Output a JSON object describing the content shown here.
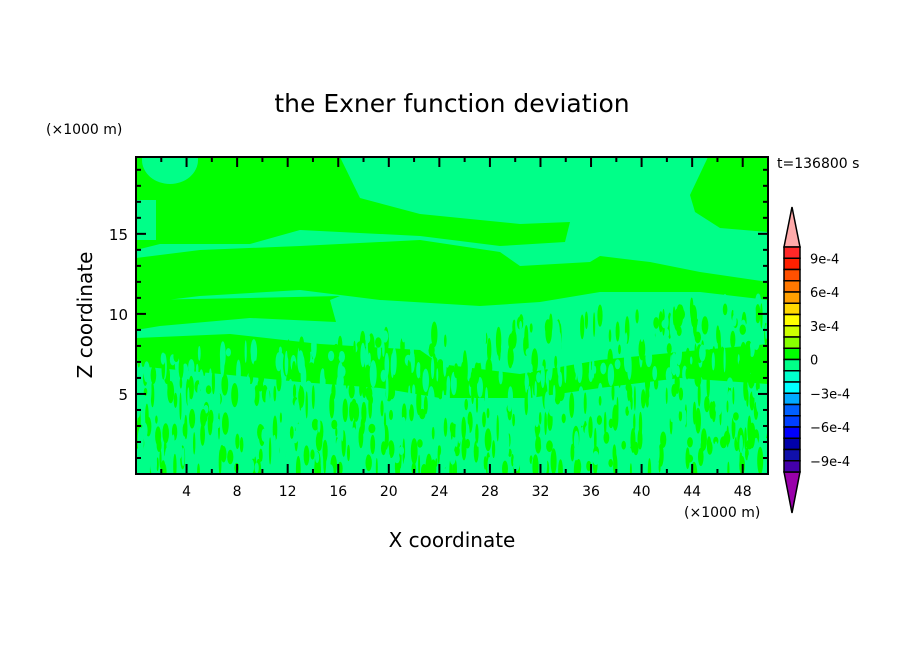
{
  "chart_data": {
    "type": "heatmap",
    "subtype": "filled-contour",
    "title": "the Exner function deviation",
    "xlabel": "X coordinate",
    "ylabel": "Z coordinate",
    "x_unit": "(×1000 m)",
    "y_unit": "(×1000 m)",
    "time_label": "t=136800 s",
    "xlim": [
      0,
      50
    ],
    "ylim": [
      0,
      19.8
    ],
    "x_ticks": [
      4,
      8,
      12,
      16,
      20,
      24,
      28,
      32,
      36,
      40,
      44,
      48
    ],
    "y_ticks": [
      5,
      10,
      15
    ],
    "grid": false,
    "field_description_levels_present": [
      "0 to 1e-4",
      "-1e-4 to 0"
    ],
    "field_colors": {
      "positive_small": "#00ff00",
      "negative_small": "#00ff88"
    },
    "colorbar": {
      "position": "right",
      "min": -0.001,
      "max": 0.001,
      "step": 0.0001,
      "extend": "both",
      "labels": [
        {
          "value": 0.0009,
          "text": "9e-4"
        },
        {
          "value": 0.0006,
          "text": "6e-4"
        },
        {
          "value": 0.0003,
          "text": "3e-4"
        },
        {
          "value": 0,
          "text": "0"
        },
        {
          "value": -0.0003,
          "text": "−3e-4"
        },
        {
          "value": -0.0006,
          "text": "−6e-4"
        },
        {
          "value": -0.0009,
          "text": "−9e-4"
        }
      ],
      "over_color": "#ffaaaa",
      "under_color": "#9900aa",
      "colors_top_to_bottom": [
        "#ff2828",
        "#ff2000",
        "#ff5000",
        "#ff7800",
        "#ffa000",
        "#ffd800",
        "#ffff00",
        "#ccff00",
        "#88ff00",
        "#00ff00",
        "#00ff88",
        "#00ffcc",
        "#00ffff",
        "#00aaff",
        "#0060ff",
        "#0040ff",
        "#0000ff",
        "#0000aa",
        "#1010aa",
        "#4400aa"
      ]
    }
  }
}
